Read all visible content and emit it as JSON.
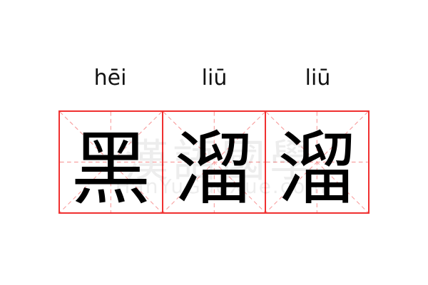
{
  "colors": {
    "grid_border": "#f03030",
    "guide_lines": "#f8a0a0",
    "text": "#000000"
  },
  "characters": [
    {
      "hanzi": "黑",
      "pinyin": "hēi"
    },
    {
      "hanzi": "溜",
      "pinyin": "liū"
    },
    {
      "hanzi": "溜",
      "pinyin": "liū"
    }
  ],
  "watermark": {
    "hanzi": "漢語國學",
    "latin": "HanYuGuoXue.com"
  }
}
